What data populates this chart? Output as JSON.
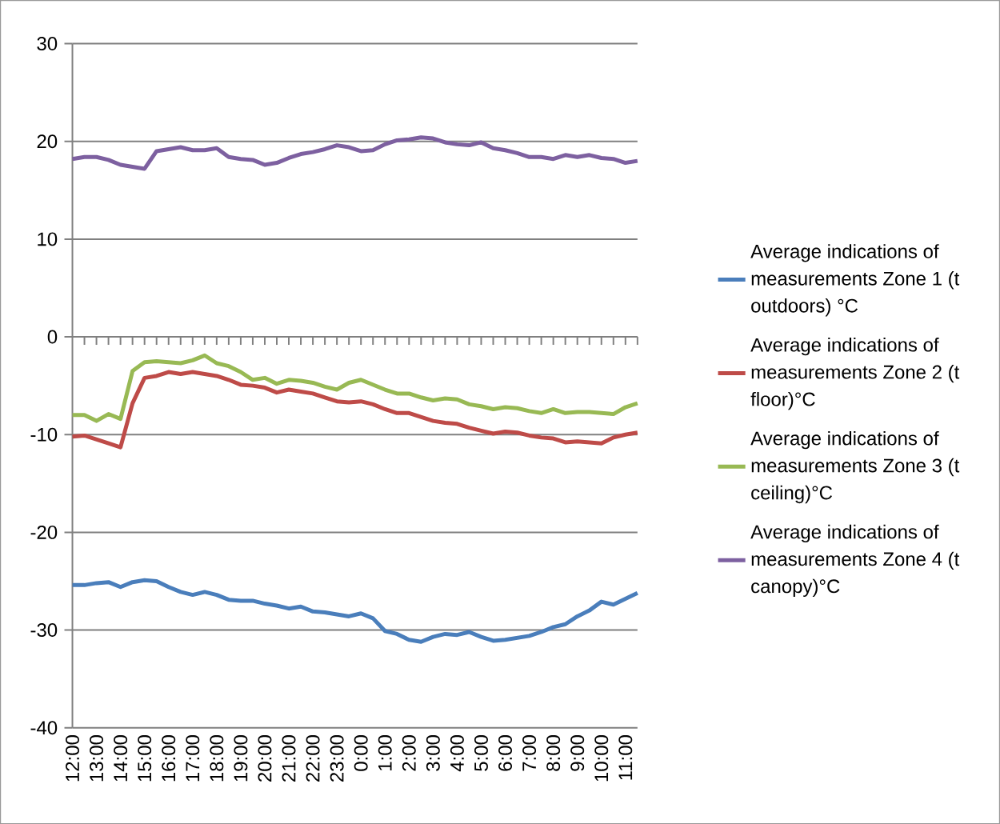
{
  "chart_data": {
    "type": "line",
    "categories": [
      "12:00",
      null,
      "13:00",
      null,
      "14:00",
      null,
      "15:00",
      null,
      "16:00",
      null,
      "17:00",
      null,
      "18:00",
      null,
      "19:00",
      null,
      "20:00",
      null,
      "21:00",
      null,
      "22:00",
      null,
      "23:00",
      null,
      "0:00",
      null,
      "1:00",
      null,
      "2:00",
      null,
      "3:00",
      null,
      "4:00",
      null,
      "5:00",
      null,
      "6:00",
      null,
      "7:00",
      null,
      "8:00",
      null,
      "9:00",
      null,
      "10:00",
      null,
      "11:00",
      null
    ],
    "series": [
      {
        "name": "Average indications of measurements  Zone 1 (t outdoors) °C",
        "color": "#4a7ebb",
        "values": [
          -25.4,
          -25.4,
          -25.2,
          -25.1,
          -25.6,
          -25.1,
          -24.9,
          -25.0,
          -25.6,
          -26.1,
          -26.4,
          -26.1,
          -26.4,
          -26.9,
          -27.0,
          -27.0,
          -27.3,
          -27.5,
          -27.8,
          -27.6,
          -28.1,
          -28.2,
          -28.4,
          -28.6,
          -28.3,
          -28.8,
          -30.1,
          -30.4,
          -31.0,
          -31.2,
          -30.7,
          -30.4,
          -30.5,
          -30.2,
          -30.7,
          -31.1,
          -31.0,
          -30.8,
          -30.6,
          -30.2,
          -29.7,
          -29.4,
          -28.6,
          -28.0,
          -27.1,
          -27.4,
          -26.8,
          -26.2
        ]
      },
      {
        "name": "Average indications of measurements  Zone 2 (t floor)°C",
        "color": "#be4b48",
        "values": [
          -10.2,
          -10.1,
          -10.5,
          -10.9,
          -11.3,
          -6.8,
          -4.2,
          -4.0,
          -3.6,
          -3.8,
          -3.6,
          -3.8,
          -4.0,
          -4.4,
          -4.9,
          -5.0,
          -5.2,
          -5.7,
          -5.4,
          -5.6,
          -5.8,
          -6.2,
          -6.6,
          -6.7,
          -6.6,
          -6.9,
          -7.4,
          -7.8,
          -7.8,
          -8.2,
          -8.6,
          -8.8,
          -8.9,
          -9.3,
          -9.6,
          -9.9,
          -9.7,
          -9.8,
          -10.1,
          -10.3,
          -10.4,
          -10.8,
          -10.7,
          -10.8,
          -10.9,
          -10.3,
          -10.0,
          -9.8
        ]
      },
      {
        "name": "Average indications of measurements  Zone 3 (t ceiling)°C",
        "color": "#98b954",
        "values": [
          -8.0,
          -8.0,
          -8.6,
          -7.9,
          -8.4,
          -3.5,
          -2.6,
          -2.5,
          -2.6,
          -2.7,
          -2.4,
          -1.9,
          -2.7,
          -3.0,
          -3.6,
          -4.4,
          -4.2,
          -4.8,
          -4.4,
          -4.5,
          -4.7,
          -5.1,
          -5.4,
          -4.7,
          -4.4,
          -4.9,
          -5.4,
          -5.8,
          -5.8,
          -6.2,
          -6.5,
          -6.3,
          -6.4,
          -6.9,
          -7.1,
          -7.4,
          -7.2,
          -7.3,
          -7.6,
          -7.8,
          -7.4,
          -7.8,
          -7.7,
          -7.7,
          -7.8,
          -7.9,
          -7.2,
          -6.8
        ]
      },
      {
        "name": "Average indications of measurements  Zone 4 (t canopy)°C",
        "color": "#7d60a0",
        "values": [
          18.2,
          18.4,
          18.4,
          18.1,
          17.6,
          17.4,
          17.2,
          19.0,
          19.2,
          19.4,
          19.1,
          19.1,
          19.3,
          18.4,
          18.2,
          18.1,
          17.6,
          17.8,
          18.3,
          18.7,
          18.9,
          19.2,
          19.6,
          19.4,
          19.0,
          19.1,
          19.7,
          20.1,
          20.2,
          20.4,
          20.3,
          19.9,
          19.7,
          19.6,
          19.9,
          19.3,
          19.1,
          18.8,
          18.4,
          18.4,
          18.2,
          18.6,
          18.4,
          18.6,
          18.3,
          18.2,
          17.8,
          18.0
        ]
      }
    ],
    "ylim": [
      -40,
      30
    ],
    "yticks": [
      -40,
      -30,
      -20,
      -10,
      0,
      10,
      20,
      30
    ],
    "grid": "y",
    "legend": "right",
    "marker": "none",
    "line_style": "solid"
  }
}
